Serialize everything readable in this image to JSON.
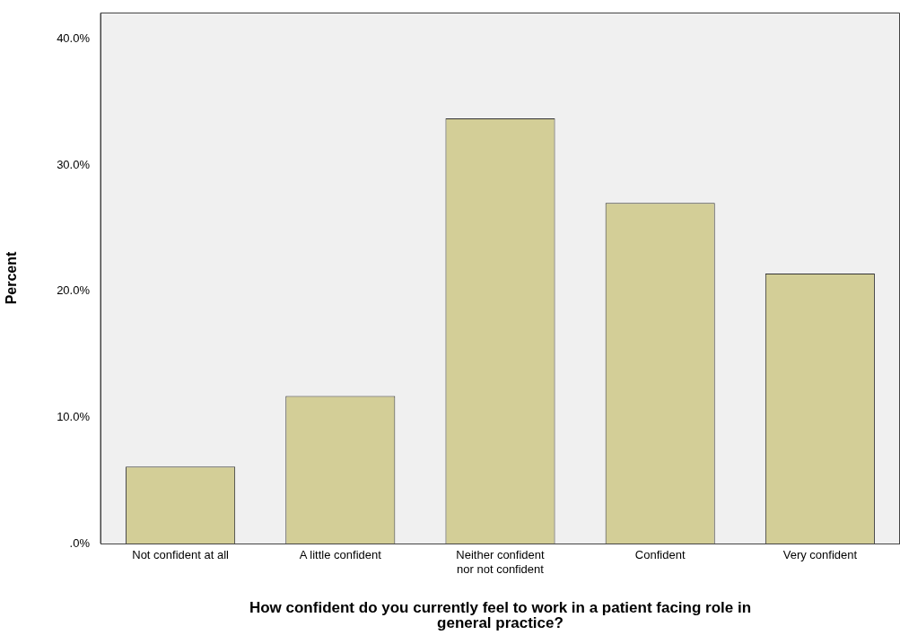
{
  "chart_data": {
    "type": "bar",
    "xlabel": "How confident do you currently feel to work in a patient facing role in\ngeneral practice?",
    "ylabel": "Percent",
    "categories": [
      "Not confident at all",
      "A little confident",
      "Neither confident\nnor not confident",
      "Confident",
      "Very confident"
    ],
    "values": [
      6.1,
      11.7,
      33.7,
      27.0,
      21.4
    ],
    "color": "#d3ce97",
    "ylim": [
      0,
      42.1
    ],
    "yticks": [
      {
        "value": 0,
        "label": ".0%"
      },
      {
        "value": 10,
        "label": "10.0%"
      },
      {
        "value": 20,
        "label": "20.0%"
      },
      {
        "value": 30,
        "label": "30.0%"
      },
      {
        "value": 40,
        "label": "40.0%"
      }
    ],
    "grid": false,
    "legend": false
  }
}
